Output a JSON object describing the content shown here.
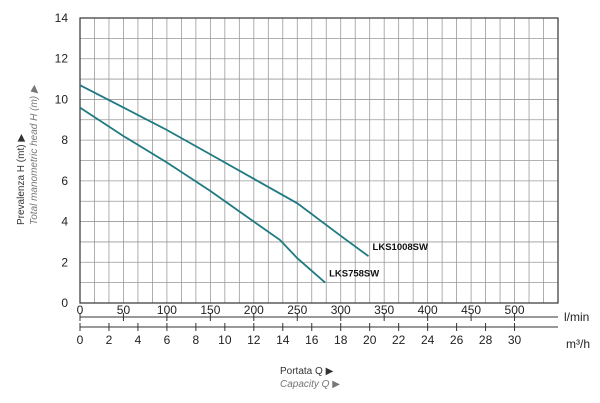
{
  "chart_data": {
    "type": "line",
    "y_axis": {
      "label": "Prevalenza H (mt) ▶",
      "label_secondary": "Total manometric head H (m) ▶",
      "min": 0,
      "max": 14,
      "ticks": [
        0,
        2,
        4,
        6,
        8,
        10,
        12,
        14
      ]
    },
    "x_axis": {
      "min": 0,
      "max": 550,
      "ticks": [
        0,
        50,
        100,
        150,
        200,
        250,
        300,
        350,
        400,
        450,
        500
      ],
      "unit": "l/min",
      "label": "Portata Q ▶",
      "label_secondary": "Capacity Q ▶"
    },
    "x_axis_secondary": {
      "ticks": [
        0,
        2,
        4,
        6,
        8,
        10,
        12,
        14,
        16,
        18,
        20,
        22,
        24,
        26,
        28,
        30
      ],
      "unit": "m³/h"
    },
    "grid": true,
    "series": [
      {
        "name": "LKS1008SW",
        "color": "#1f7a82",
        "points": [
          [
            0,
            10.7
          ],
          [
            50,
            9.6
          ],
          [
            100,
            8.5
          ],
          [
            150,
            7.3
          ],
          [
            200,
            6.1
          ],
          [
            250,
            4.9
          ],
          [
            300,
            3.3
          ],
          [
            332,
            2.3
          ]
        ]
      },
      {
        "name": "LKS758SW",
        "color": "#1f7a82",
        "points": [
          [
            0,
            9.6
          ],
          [
            50,
            8.2
          ],
          [
            100,
            6.9
          ],
          [
            150,
            5.5
          ],
          [
            200,
            4.0
          ],
          [
            230,
            3.1
          ],
          [
            250,
            2.2
          ],
          [
            282,
            1.0
          ]
        ]
      }
    ]
  }
}
